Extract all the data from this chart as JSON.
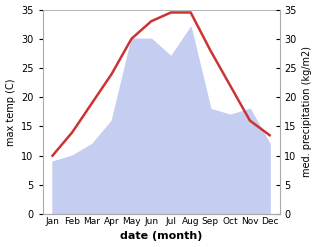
{
  "months": [
    "Jan",
    "Feb",
    "Mar",
    "Apr",
    "May",
    "Jun",
    "Jul",
    "Aug",
    "Sep",
    "Oct",
    "Nov",
    "Dec"
  ],
  "temperature": [
    10,
    14,
    19,
    24,
    30,
    33,
    34.5,
    34.5,
    28,
    22,
    16,
    13.5
  ],
  "precipitation": [
    9,
    10,
    12,
    16,
    30,
    30,
    27,
    32,
    18,
    17,
    18,
    12
  ],
  "temp_color": "#cc3333",
  "precip_color": "#c5cef0",
  "ylim_left": [
    0,
    35
  ],
  "ylim_right": [
    0,
    35
  ],
  "xlabel": "date (month)",
  "ylabel_left": "max temp (C)",
  "ylabel_right": "med. precipitation (kg/m2)",
  "yticks": [
    0,
    5,
    10,
    15,
    20,
    25,
    30,
    35
  ],
  "bg_color": "#ffffff",
  "spine_color": "#aaaaaa",
  "temp_linewidth": 1.8,
  "xlabel_fontsize": 8,
  "ylabel_fontsize": 7,
  "tick_fontsize": 7,
  "month_fontsize": 6.5
}
